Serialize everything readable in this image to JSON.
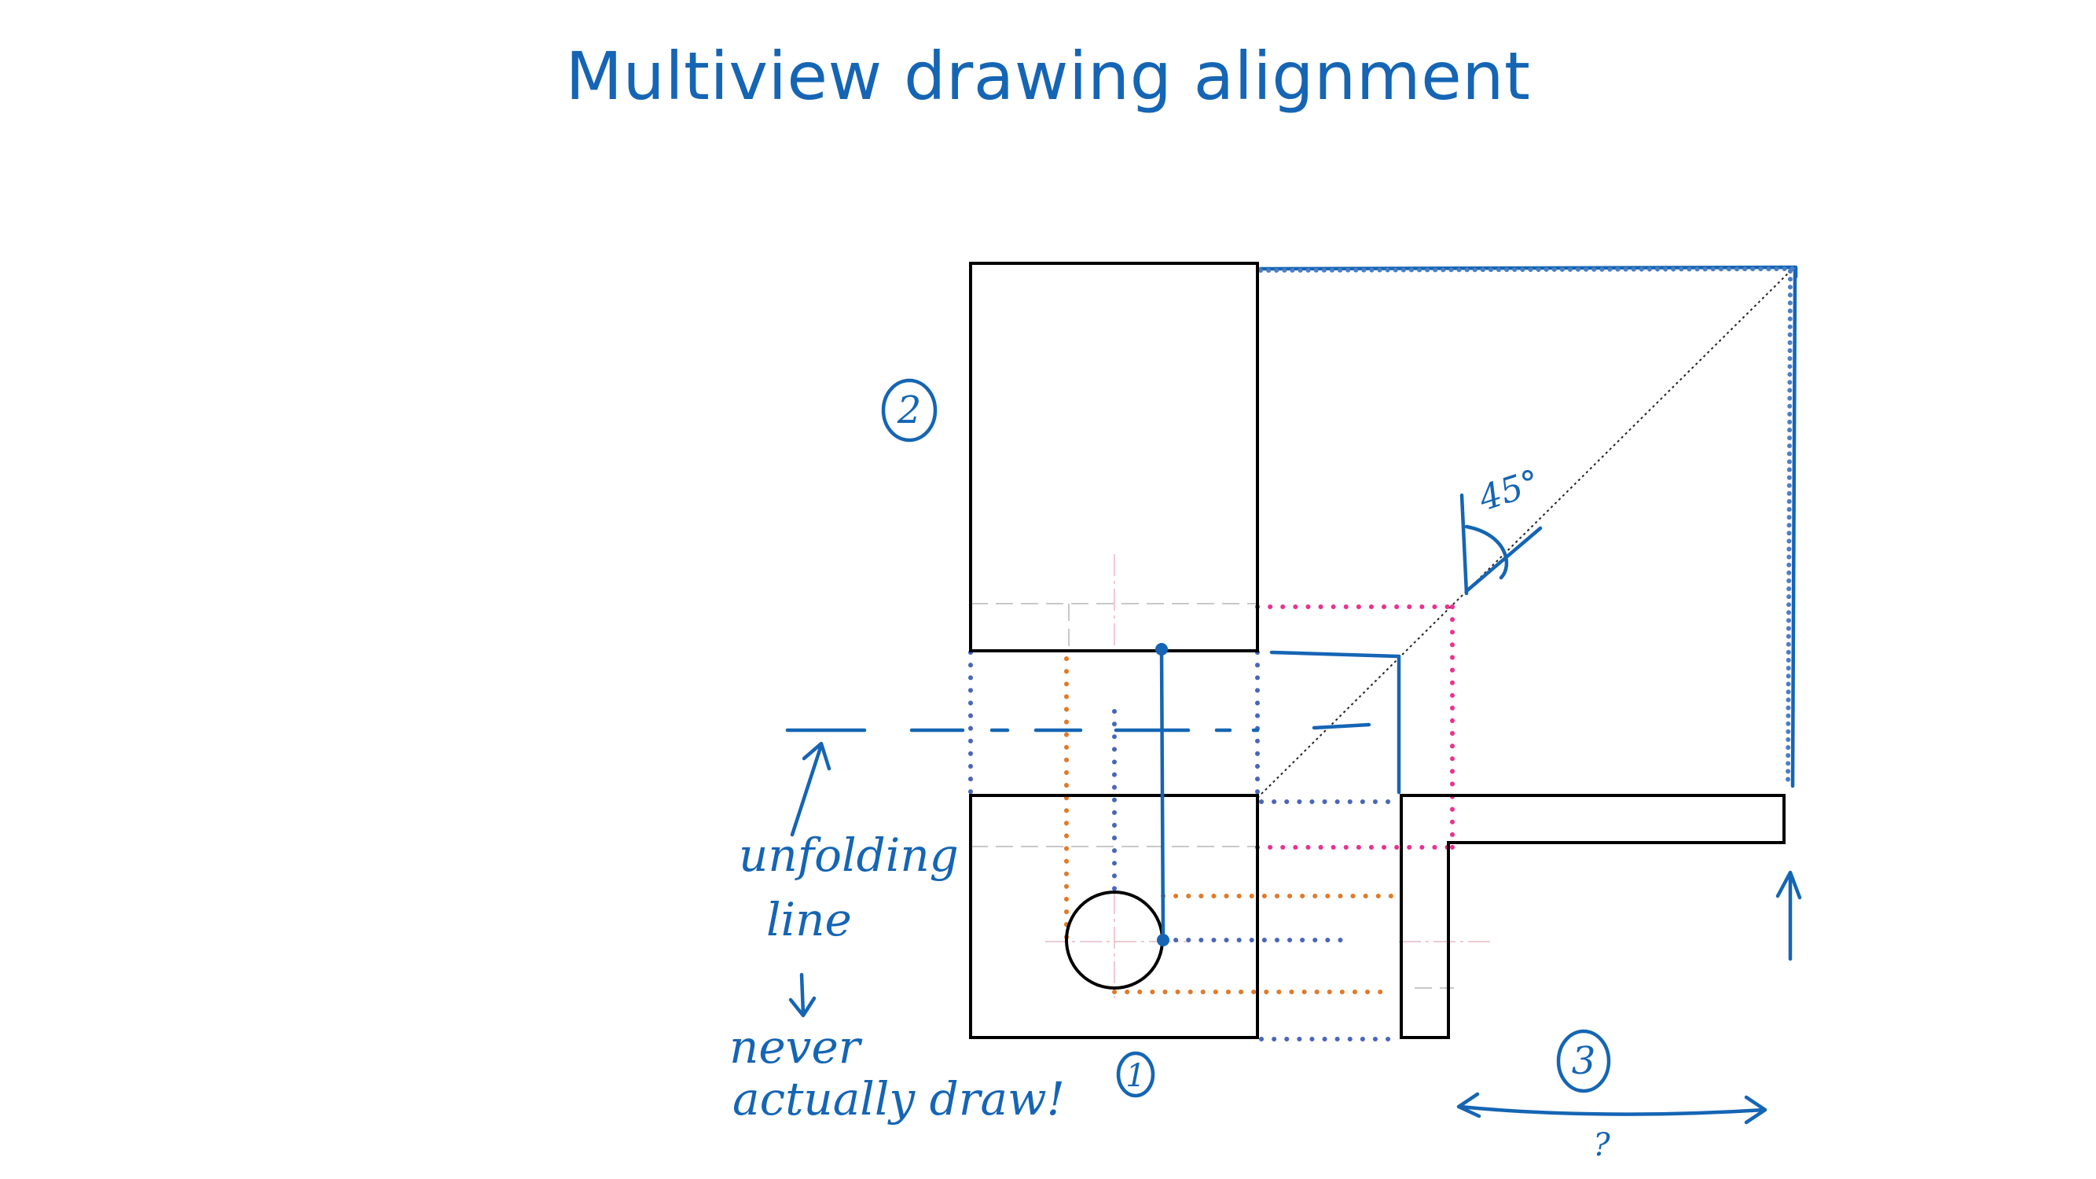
{
  "slide": {
    "title": "Multiview drawing alignment"
  },
  "annotations": {
    "view_1": "1",
    "view_2": "2",
    "view_3": "3",
    "angle": "45°",
    "unfolding_line_1": "unfolding",
    "unfolding_line_2": "line",
    "never_1": "never",
    "never_2": "actually draw!",
    "question_mark": "?"
  },
  "colors": {
    "ink": "#1565b4",
    "outline": "#000000",
    "projection_blue": "#4a66b8",
    "projection_orange": "#e07a2a",
    "projection_pink": "#e8338f"
  }
}
